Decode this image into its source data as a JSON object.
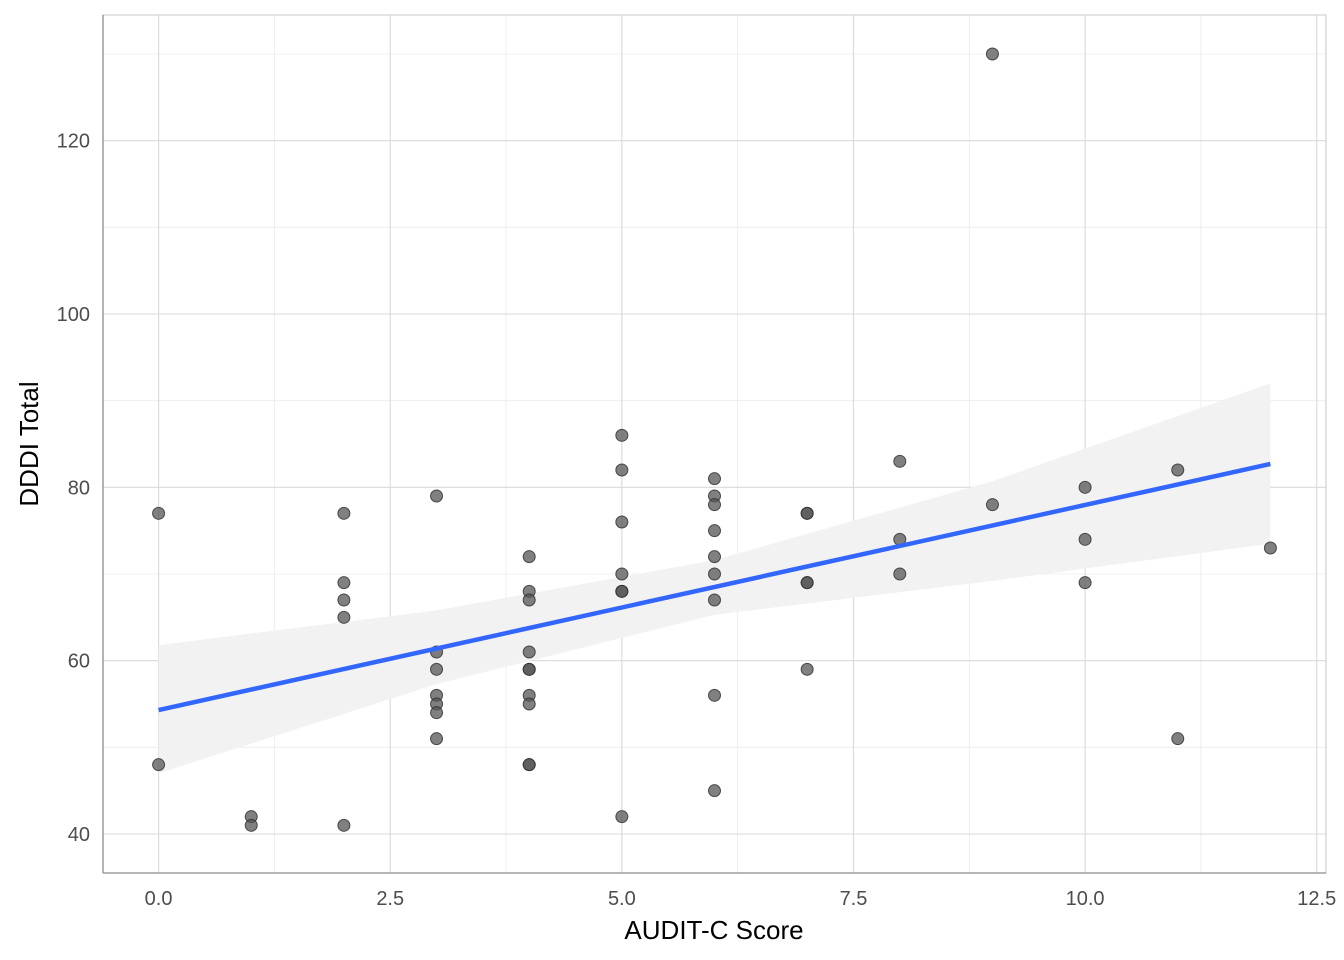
{
  "chart_data": {
    "type": "scatter",
    "title": "",
    "xlabel": "AUDIT-C Score",
    "ylabel": "DDDI Total",
    "xlim": [
      -0.6,
      12.6
    ],
    "ylim": [
      35.5,
      134.5
    ],
    "x_ticks": [
      0.0,
      2.5,
      5.0,
      7.5,
      10.0,
      12.5
    ],
    "x_tick_labels": [
      "0.0",
      "2.5",
      "5.0",
      "7.5",
      "10.0",
      "12.5"
    ],
    "y_ticks": [
      40,
      60,
      80,
      100,
      120
    ],
    "y_tick_labels": [
      "40",
      "60",
      "80",
      "100",
      "120"
    ],
    "grid": true,
    "legend": "none",
    "point_color": "#555555",
    "line_color": "#3366ff",
    "band_color": "#f2f2f2",
    "points": [
      {
        "x": 0,
        "y": 77
      },
      {
        "x": 0,
        "y": 48
      },
      {
        "x": 1,
        "y": 42
      },
      {
        "x": 1,
        "y": 41
      },
      {
        "x": 2,
        "y": 77
      },
      {
        "x": 2,
        "y": 69
      },
      {
        "x": 2,
        "y": 67
      },
      {
        "x": 2,
        "y": 65
      },
      {
        "x": 2,
        "y": 41
      },
      {
        "x": 3,
        "y": 79
      },
      {
        "x": 3,
        "y": 61
      },
      {
        "x": 3,
        "y": 59
      },
      {
        "x": 3,
        "y": 56
      },
      {
        "x": 3,
        "y": 55
      },
      {
        "x": 3,
        "y": 54
      },
      {
        "x": 3,
        "y": 51
      },
      {
        "x": 4,
        "y": 72
      },
      {
        "x": 4,
        "y": 68
      },
      {
        "x": 4,
        "y": 67
      },
      {
        "x": 4,
        "y": 61
      },
      {
        "x": 4,
        "y": 59
      },
      {
        "x": 4,
        "y": 59
      },
      {
        "x": 4,
        "y": 56
      },
      {
        "x": 4,
        "y": 55
      },
      {
        "x": 4,
        "y": 48
      },
      {
        "x": 4,
        "y": 48
      },
      {
        "x": 5,
        "y": 86
      },
      {
        "x": 5,
        "y": 82
      },
      {
        "x": 5,
        "y": 76
      },
      {
        "x": 5,
        "y": 70
      },
      {
        "x": 5,
        "y": 68
      },
      {
        "x": 5,
        "y": 68
      },
      {
        "x": 5,
        "y": 42
      },
      {
        "x": 6,
        "y": 81
      },
      {
        "x": 6,
        "y": 79
      },
      {
        "x": 6,
        "y": 78
      },
      {
        "x": 6,
        "y": 75
      },
      {
        "x": 6,
        "y": 72
      },
      {
        "x": 6,
        "y": 70
      },
      {
        "x": 6,
        "y": 67
      },
      {
        "x": 6,
        "y": 56
      },
      {
        "x": 6,
        "y": 45
      },
      {
        "x": 7,
        "y": 77
      },
      {
        "x": 7,
        "y": 77
      },
      {
        "x": 7,
        "y": 69
      },
      {
        "x": 7,
        "y": 69
      },
      {
        "x": 7,
        "y": 59
      },
      {
        "x": 8,
        "y": 83
      },
      {
        "x": 8,
        "y": 74
      },
      {
        "x": 8,
        "y": 70
      },
      {
        "x": 9,
        "y": 130
      },
      {
        "x": 9,
        "y": 78
      },
      {
        "x": 10,
        "y": 80
      },
      {
        "x": 10,
        "y": 74
      },
      {
        "x": 10,
        "y": 69
      },
      {
        "x": 11,
        "y": 82
      },
      {
        "x": 11,
        "y": 51
      },
      {
        "x": 12,
        "y": 73
      }
    ],
    "trend_line": {
      "x": [
        0,
        12
      ],
      "y": [
        54.3,
        82.7
      ]
    },
    "confidence_band": {
      "x": [
        0,
        3,
        6,
        9,
        12
      ],
      "lower": [
        47.0,
        57.3,
        65.3,
        69.2,
        73.5
      ],
      "upper": [
        61.8,
        65.8,
        71.6,
        80.7,
        92.0
      ]
    }
  }
}
